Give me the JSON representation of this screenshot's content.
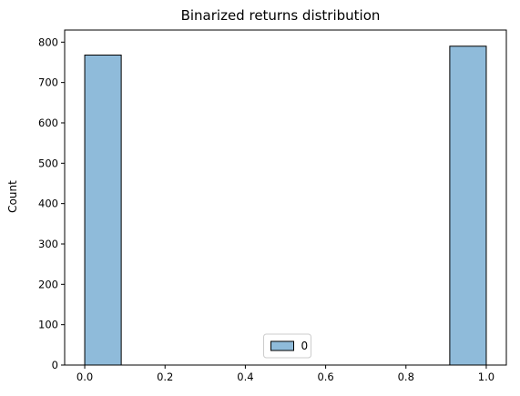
{
  "chart_data": {
    "type": "bar",
    "title": "Binarized returns distribution",
    "xlabel": "",
    "ylabel": "Count",
    "bins": [
      {
        "x0": 0.0,
        "x1": 0.0909,
        "count": 768
      },
      {
        "x0": 0.9091,
        "x1": 1.0,
        "count": 790
      }
    ],
    "xlim": [
      -0.05,
      1.05
    ],
    "ylim": [
      0,
      830
    ],
    "xticks": [
      0.0,
      0.2,
      0.4,
      0.6,
      0.8,
      1.0
    ],
    "xtick_labels": [
      "0.0",
      "0.2",
      "0.4",
      "0.6",
      "0.8",
      "1.0"
    ],
    "yticks": [
      0,
      100,
      200,
      300,
      400,
      500,
      600,
      700,
      800
    ],
    "ytick_labels": [
      "0",
      "100",
      "200",
      "300",
      "400",
      "500",
      "600",
      "700",
      "800"
    ],
    "legend": {
      "placement": "bottom-center",
      "entries": [
        "0"
      ]
    },
    "grid": false,
    "colors": {
      "bar_fill": "#8fbbda",
      "bar_edge": "#000000"
    }
  }
}
